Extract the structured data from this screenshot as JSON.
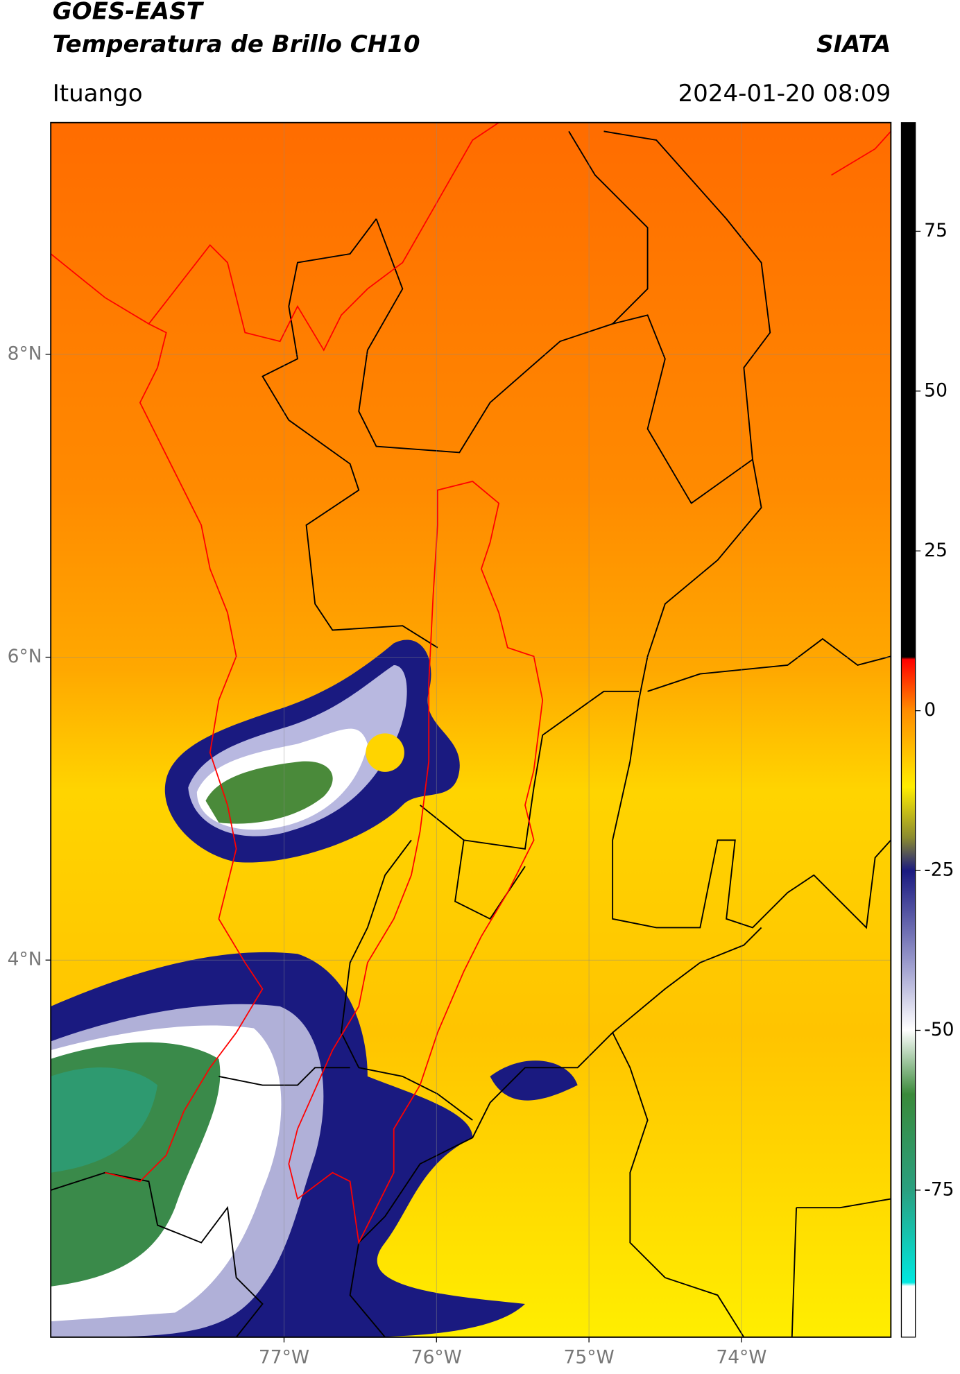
{
  "header": {
    "title_line1": "GOES-EAST",
    "title_line2": "Temperatura de Brillo CH10",
    "org": "SIATA",
    "location": "Ituango",
    "datetime": "2024-01-20 08:09"
  },
  "map": {
    "xlim": [
      -78.53,
      -73.02
    ],
    "ylim": [
      1.51,
      9.53
    ],
    "xticks": [
      {
        "value": -77,
        "label": "77°W"
      },
      {
        "value": -76,
        "label": "76°W"
      },
      {
        "value": -75,
        "label": "75°W"
      },
      {
        "value": -74,
        "label": "74°W"
      }
    ],
    "yticks": [
      {
        "value": 8,
        "label": "8°N"
      },
      {
        "value": 6,
        "label": "6°N"
      },
      {
        "value": 4,
        "label": "4°N"
      }
    ],
    "grid": true
  },
  "colorbar": {
    "lim": [
      -98,
      92
    ],
    "ticks": [
      75,
      50,
      25,
      0,
      -25,
      -50,
      -75
    ]
  }
}
